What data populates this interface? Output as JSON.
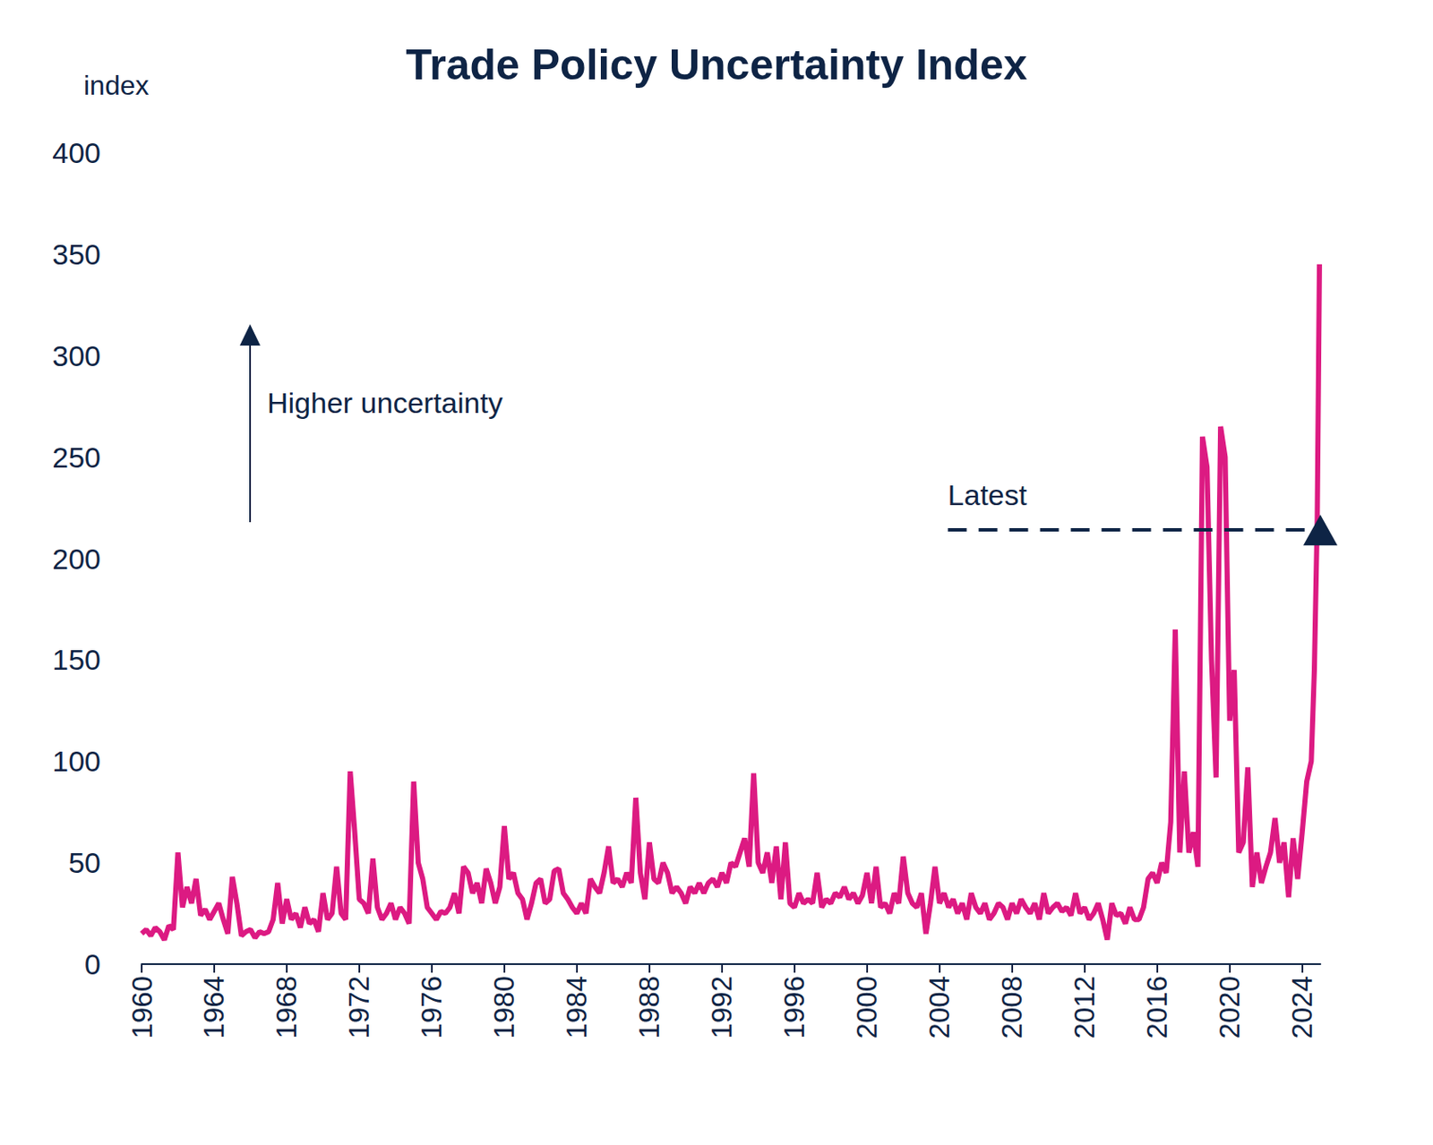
{
  "chart_data": {
    "type": "line",
    "title": "Trade Policy Uncertainty Index",
    "y_label": "index",
    "color": "#dc1a82",
    "grid": false,
    "xlim": [
      1960,
      2025
    ],
    "xticks": [
      1960,
      1964,
      1968,
      1972,
      1976,
      1980,
      1984,
      1988,
      1992,
      1996,
      2000,
      2004,
      2008,
      2012,
      2016,
      2020,
      2024
    ],
    "ylim": [
      0,
      400
    ],
    "yticks": [
      0,
      50,
      100,
      150,
      200,
      250,
      300,
      350,
      400
    ],
    "annotations": [
      {
        "text": "Higher uncertainty"
      },
      {
        "text": "Latest",
        "y": 214
      }
    ],
    "x": [
      1960,
      1960.25,
      1960.5,
      1960.75,
      1961,
      1961.25,
      1961.5,
      1961.75,
      1962,
      1962.25,
      1962.5,
      1962.75,
      1963,
      1963.25,
      1963.5,
      1963.75,
      1964,
      1964.25,
      1964.5,
      1964.75,
      1965,
      1965.25,
      1965.5,
      1965.75,
      1966,
      1966.25,
      1966.5,
      1966.75,
      1967,
      1967.25,
      1967.5,
      1967.75,
      1968,
      1968.25,
      1968.5,
      1968.75,
      1969,
      1969.25,
      1969.5,
      1969.75,
      1970,
      1970.25,
      1970.5,
      1970.75,
      1971,
      1971.25,
      1971.5,
      1971.75,
      1972,
      1972.25,
      1972.5,
      1972.75,
      1973,
      1973.25,
      1973.5,
      1973.75,
      1974,
      1974.25,
      1974.5,
      1974.75,
      1975,
      1975.25,
      1975.5,
      1975.75,
      1976,
      1976.25,
      1976.5,
      1976.75,
      1977,
      1977.25,
      1977.5,
      1977.75,
      1978,
      1978.25,
      1978.5,
      1978.75,
      1979,
      1979.25,
      1979.5,
      1979.75,
      1980,
      1980.25,
      1980.5,
      1980.75,
      1981,
      1981.25,
      1981.5,
      1981.75,
      1982,
      1982.25,
      1982.5,
      1982.75,
      1983,
      1983.25,
      1983.5,
      1983.75,
      1984,
      1984.25,
      1984.5,
      1984.75,
      1985,
      1985.25,
      1985.5,
      1985.75,
      1986,
      1986.25,
      1986.5,
      1986.75,
      1987,
      1987.25,
      1987.5,
      1987.75,
      1988,
      1988.25,
      1988.5,
      1988.75,
      1989,
      1989.25,
      1989.5,
      1989.75,
      1990,
      1990.25,
      1990.5,
      1990.75,
      1991,
      1991.25,
      1991.5,
      1991.75,
      1992,
      1992.25,
      1992.5,
      1992.75,
      1993,
      1993.25,
      1993.5,
      1993.75,
      1994,
      1994.25,
      1994.5,
      1994.75,
      1995,
      1995.25,
      1995.5,
      1995.75,
      1996,
      1996.25,
      1996.5,
      1996.75,
      1997,
      1997.25,
      1997.5,
      1997.75,
      1998,
      1998.25,
      1998.5,
      1998.75,
      1999,
      1999.25,
      1999.5,
      1999.75,
      2000,
      2000.25,
      2000.5,
      2000.75,
      2001,
      2001.25,
      2001.5,
      2001.75,
      2002,
      2002.25,
      2002.5,
      2002.75,
      2003,
      2003.25,
      2003.5,
      2003.75,
      2004,
      2004.25,
      2004.5,
      2004.75,
      2005,
      2005.25,
      2005.5,
      2005.75,
      2006,
      2006.25,
      2006.5,
      2006.75,
      2007,
      2007.25,
      2007.5,
      2007.75,
      2008,
      2008.25,
      2008.5,
      2008.75,
      2009,
      2009.25,
      2009.5,
      2009.75,
      2010,
      2010.25,
      2010.5,
      2010.75,
      2011,
      2011.25,
      2011.5,
      2011.75,
      2012,
      2012.25,
      2012.5,
      2012.75,
      2013,
      2013.25,
      2013.5,
      2013.75,
      2014,
      2014.25,
      2014.5,
      2014.75,
      2015,
      2015.25,
      2015.5,
      2015.75,
      2016,
      2016.25,
      2016.5,
      2016.75,
      2017,
      2017.25,
      2017.5,
      2017.75,
      2018,
      2018.25,
      2018.5,
      2018.75,
      2019,
      2019.25,
      2019.5,
      2019.75,
      2020,
      2020.25,
      2020.5,
      2020.75,
      2021,
      2021.25,
      2021.5,
      2021.75,
      2022,
      2022.25,
      2022.5,
      2022.75,
      2023,
      2023.25,
      2023.5,
      2023.75,
      2024,
      2024.25,
      2024.5,
      2024.67,
      2024.83,
      2024.95
    ],
    "values": [
      15,
      17,
      14,
      18,
      16,
      12,
      19,
      17,
      55,
      28,
      38,
      30,
      42,
      24,
      27,
      22,
      26,
      30,
      22,
      15,
      43,
      30,
      14,
      16,
      17,
      13,
      16,
      15,
      16,
      22,
      40,
      20,
      32,
      22,
      25,
      18,
      28,
      20,
      22,
      16,
      35,
      22,
      25,
      48,
      25,
      22,
      95,
      65,
      32,
      30,
      25,
      52,
      28,
      22,
      25,
      30,
      22,
      28,
      25,
      20,
      90,
      50,
      42,
      28,
      25,
      22,
      26,
      25,
      28,
      35,
      25,
      48,
      45,
      35,
      40,
      30,
      47,
      40,
      30,
      38,
      68,
      42,
      45,
      35,
      32,
      22,
      30,
      40,
      42,
      30,
      32,
      46,
      47,
      35,
      32,
      28,
      25,
      30,
      25,
      42,
      38,
      35,
      45,
      58,
      40,
      42,
      38,
      45,
      40,
      82,
      45,
      32,
      60,
      42,
      40,
      50,
      45,
      35,
      38,
      35,
      30,
      38,
      35,
      40,
      35,
      40,
      42,
      38,
      45,
      40,
      50,
      48,
      55,
      62,
      48,
      94,
      50,
      45,
      55,
      40,
      58,
      32,
      60,
      30,
      28,
      35,
      30,
      32,
      30,
      45,
      28,
      32,
      30,
      35,
      33,
      38,
      32,
      35,
      30,
      34,
      45,
      30,
      48,
      28,
      30,
      25,
      35,
      30,
      53,
      35,
      30,
      28,
      35,
      15,
      30,
      48,
      30,
      35,
      28,
      32,
      25,
      30,
      22,
      35,
      28,
      25,
      30,
      22,
      25,
      30,
      28,
      22,
      30,
      25,
      32,
      28,
      25,
      30,
      22,
      35,
      25,
      28,
      30,
      26,
      28,
      24,
      35,
      25,
      28,
      22,
      25,
      30,
      22,
      12,
      30,
      24,
      25,
      20,
      28,
      22,
      22,
      28,
      42,
      45,
      40,
      50,
      45,
      70,
      165,
      55,
      95,
      55,
      65,
      48,
      260,
      245,
      150,
      92,
      265,
      250,
      120,
      145,
      55,
      60,
      97,
      38,
      55,
      40,
      48,
      55,
      72,
      50,
      60,
      33,
      62,
      42,
      65,
      90,
      100,
      145,
      220,
      345
    ]
  }
}
